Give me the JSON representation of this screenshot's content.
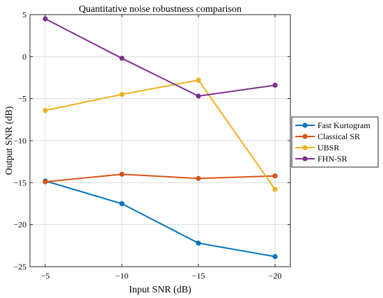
{
  "chart_data": {
    "type": "line",
    "title": "Quantitative noise robustness comparison",
    "xlabel": "Input SNR (dB)",
    "ylabel": "Output SNR (dB)",
    "categories": [
      "−5",
      "−10",
      "−15",
      "−20"
    ],
    "yticks": [
      "5",
      "0",
      "−5",
      "−10",
      "−15",
      "−20",
      "−25"
    ],
    "ylim": [
      -25,
      5
    ],
    "grid": true,
    "legend_position": "right",
    "series": [
      {
        "name": "Fast Kurtogram",
        "color": "#0072BD",
        "values": [
          -14.8,
          -17.5,
          -22.2,
          -23.8
        ]
      },
      {
        "name": "Classical SR",
        "color": "#D95319",
        "values": [
          -14.9,
          -14.0,
          -14.5,
          -14.2
        ]
      },
      {
        "name": "UBSR",
        "color": "#EDB120",
        "values": [
          -6.4,
          -4.5,
          -2.8,
          -15.8
        ]
      },
      {
        "name": "FHN-SR",
        "color": "#7E2F8E",
        "values": [
          4.5,
          -0.2,
          -4.7,
          -3.4
        ]
      }
    ]
  }
}
